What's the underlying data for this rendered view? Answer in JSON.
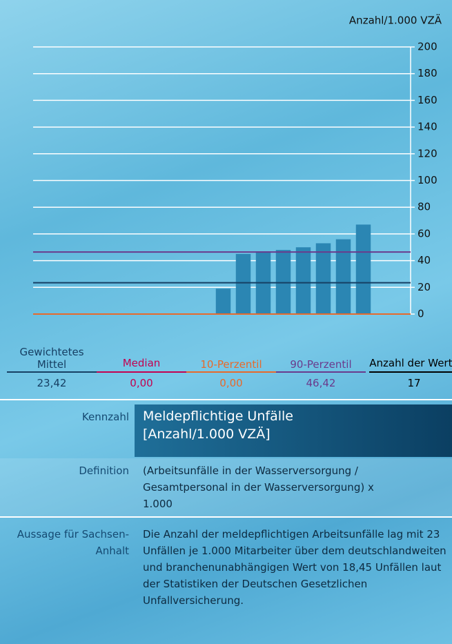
{
  "chart_data": {
    "type": "bar",
    "axis_label": "Anzahl/1.000 VZÄ",
    "categories": [
      null,
      null,
      null,
      null,
      null,
      null,
      null,
      null,
      null,
      null,
      null,
      null,
      null,
      null,
      null,
      null,
      null
    ],
    "values": [
      0,
      0,
      0,
      0,
      0,
      0,
      0,
      0,
      0,
      19,
      45,
      47,
      48,
      50,
      53,
      56,
      67
    ],
    "color": "#2b86b3",
    "ylim": [
      0,
      200
    ],
    "yticks": [
      0,
      20,
      40,
      60,
      80,
      100,
      120,
      140,
      160,
      180,
      200
    ],
    "grid": true
  },
  "stats": [
    {
      "name": "Gewichtetes Mittel",
      "color": "#163f63",
      "value": {
        "value": 23.42,
        "label": "23,42"
      }
    },
    {
      "name": "Median",
      "color": "#c4004f",
      "value": {
        "value": 0,
        "label": "0,00"
      }
    },
    {
      "name": "10-Perzentil",
      "color": "#e8692a",
      "value": {
        "value": 0,
        "label": "0,00"
      }
    },
    {
      "name": "90-Perzentil",
      "color": "#6a3a8c",
      "value": {
        "value": 46.42,
        "label": "46,42"
      }
    },
    {
      "name": "Anzahl der Werte",
      "color": "#000000",
      "value": 17
    }
  ],
  "info": [
    {
      "label": "Kennzahl",
      "text": "Meldepflichtige Unfälle [Anzahl/1.000 VZÄ]"
    },
    {
      "label": "Definition",
      "text": "(Arbeitsunfälle in der Wasserversorgung / Gesamtpersonal in der Wasserversorgung) x 1.000"
    },
    {
      "label": "Aussage für Sachsen-Anhalt",
      "text": "Die Anzahl der meldepflichtigen Arbeitsunfälle lag mit 23 Unfällen je 1.000 Mitarbeiter über dem deutschlandweiten und branchenunabhängigen Wert von 18,45 Unfällen laut der Statistiken der Deutschen Gesetzlichen Unfallversicherung."
    }
  ]
}
